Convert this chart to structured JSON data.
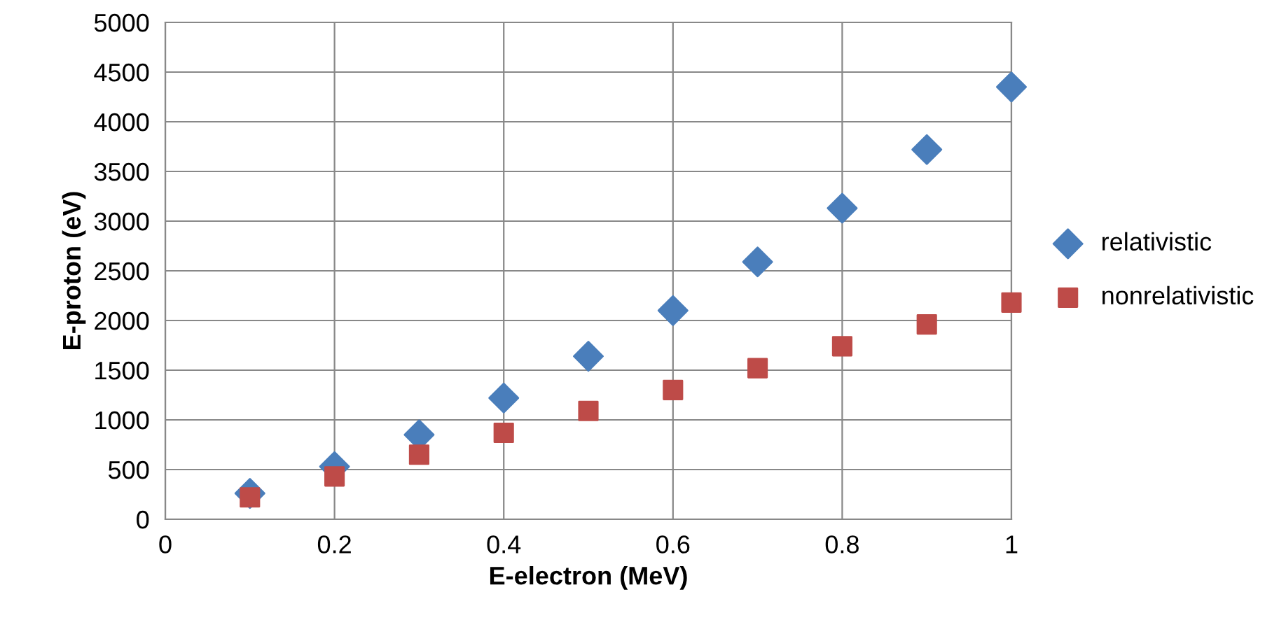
{
  "chart_data": {
    "type": "scatter",
    "xlabel": "E-electron (MeV)",
    "ylabel": "E-proton (eV)",
    "xlim": [
      0,
      1
    ],
    "xticks": [
      0,
      0.2,
      0.4,
      0.6,
      0.8,
      1
    ],
    "ylim": [
      0,
      5000
    ],
    "yticks": [
      0,
      500,
      1000,
      1500,
      2000,
      2500,
      3000,
      3500,
      4000,
      4500,
      5000
    ],
    "grid": true,
    "legend": "right",
    "series": [
      {
        "name": "relativistic",
        "color": "#4a7ebb",
        "marker": "diamond",
        "x": [
          0.1,
          0.2,
          0.3,
          0.4,
          0.5,
          0.6,
          0.7,
          0.8,
          0.9,
          1.0
        ],
        "values": [
          260,
          530,
          850,
          1220,
          1640,
          2100,
          2590,
          3130,
          3720,
          4350
        ]
      },
      {
        "name": "nonrelativistic",
        "color": "#be4b48",
        "marker": "square",
        "x": [
          0.1,
          0.2,
          0.3,
          0.4,
          0.5,
          0.6,
          0.7,
          0.8,
          0.9,
          1.0
        ],
        "values": [
          220,
          430,
          650,
          870,
          1090,
          1300,
          1520,
          1740,
          1960,
          2180
        ]
      }
    ]
  }
}
